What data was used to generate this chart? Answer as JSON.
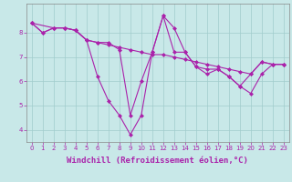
{
  "xlabel": "Windchill (Refroidissement éolien,°C)",
  "background_color": "#c8e8e8",
  "line_color": "#aa22aa",
  "xlim": [
    -0.5,
    23.5
  ],
  "ylim": [
    3.5,
    9.2
  ],
  "yticks": [
    4,
    5,
    6,
    7,
    8
  ],
  "xticks": [
    0,
    1,
    2,
    3,
    4,
    5,
    6,
    7,
    8,
    9,
    10,
    11,
    12,
    13,
    14,
    15,
    16,
    17,
    18,
    19,
    20,
    21,
    22,
    23
  ],
  "series": [
    {
      "x": [
        0,
        1,
        2,
        3,
        4,
        5,
        6,
        7,
        8,
        9,
        10,
        11,
        12,
        13,
        14,
        15,
        16,
        17,
        18,
        19,
        20,
        21,
        22,
        23
      ],
      "y": [
        8.4,
        8.0,
        8.2,
        8.2,
        8.1,
        7.7,
        6.2,
        5.2,
        4.6,
        3.8,
        4.6,
        7.2,
        8.7,
        8.2,
        7.2,
        6.6,
        6.3,
        6.5,
        6.2,
        5.8,
        6.3,
        6.8,
        6.7,
        6.7
      ]
    },
    {
      "x": [
        0,
        1,
        2,
        3,
        4,
        5,
        6,
        7,
        8,
        9,
        10,
        11,
        12,
        13,
        14,
        15,
        16,
        17,
        18,
        19,
        20,
        21,
        22,
        23
      ],
      "y": [
        8.4,
        8.0,
        8.2,
        8.2,
        8.1,
        7.7,
        7.6,
        7.5,
        7.4,
        7.3,
        7.2,
        7.1,
        7.1,
        7.0,
        6.9,
        6.8,
        6.7,
        6.6,
        6.5,
        6.4,
        6.3,
        6.8,
        6.7,
        6.7
      ]
    },
    {
      "x": [
        0,
        2,
        3,
        4,
        5,
        6,
        7,
        8,
        9,
        10,
        11,
        12,
        13,
        14,
        15,
        16,
        17,
        18,
        19,
        20,
        21,
        22,
        23
      ],
      "y": [
        8.4,
        8.2,
        8.2,
        8.1,
        7.7,
        7.6,
        7.6,
        7.3,
        4.6,
        6.0,
        7.2,
        8.7,
        7.2,
        7.2,
        6.6,
        6.5,
        6.5,
        6.2,
        5.8,
        5.5,
        6.3,
        6.7,
        6.7
      ]
    }
  ],
  "grid_color": "#a0cccc",
  "tick_fontsize": 5,
  "xlabel_fontsize": 6.5,
  "marker": "D",
  "markersize": 2,
  "linewidth": 0.8
}
